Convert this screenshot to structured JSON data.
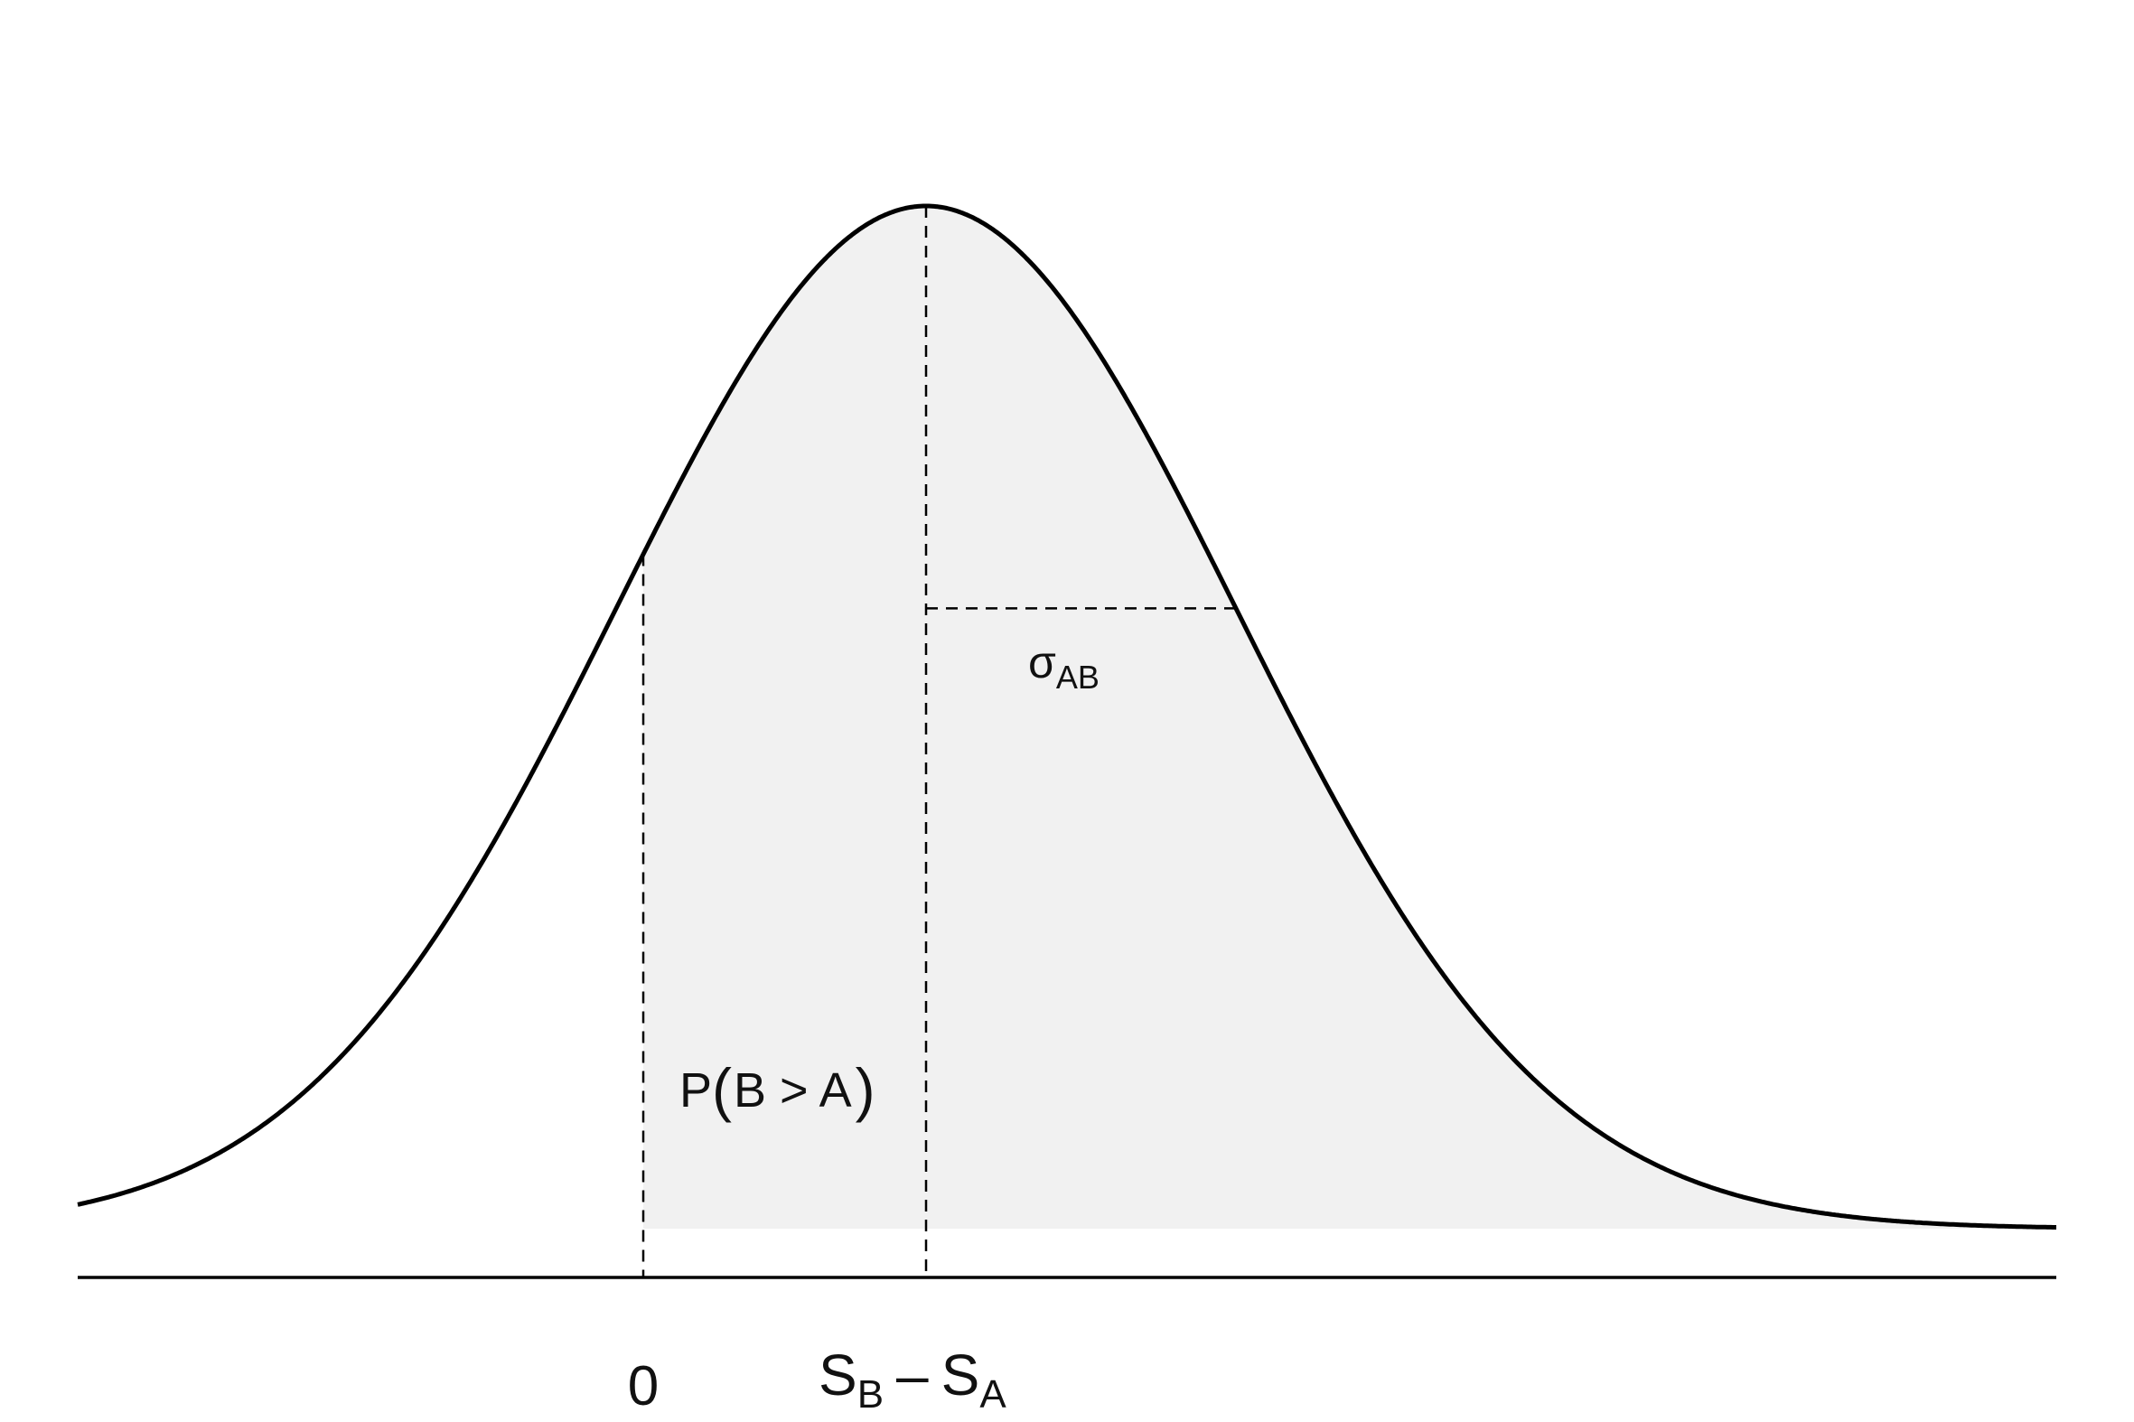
{
  "diagram": {
    "type": "normal-distribution",
    "colors": {
      "curve": "#000000",
      "shade": "#f1f1f1",
      "dashed": "#000000",
      "text": "#111111"
    },
    "labels": {
      "zero_tick": "0",
      "mean_main": "S",
      "mean_sub_b": "B",
      "mean_minus": "–",
      "mean_main2": "S",
      "mean_sub_a": "A",
      "sigma_main": "σ",
      "sigma_sub": "AB",
      "prob_p": "P",
      "prob_open": "(",
      "prob_body": "B > A",
      "prob_close": ")"
    }
  }
}
